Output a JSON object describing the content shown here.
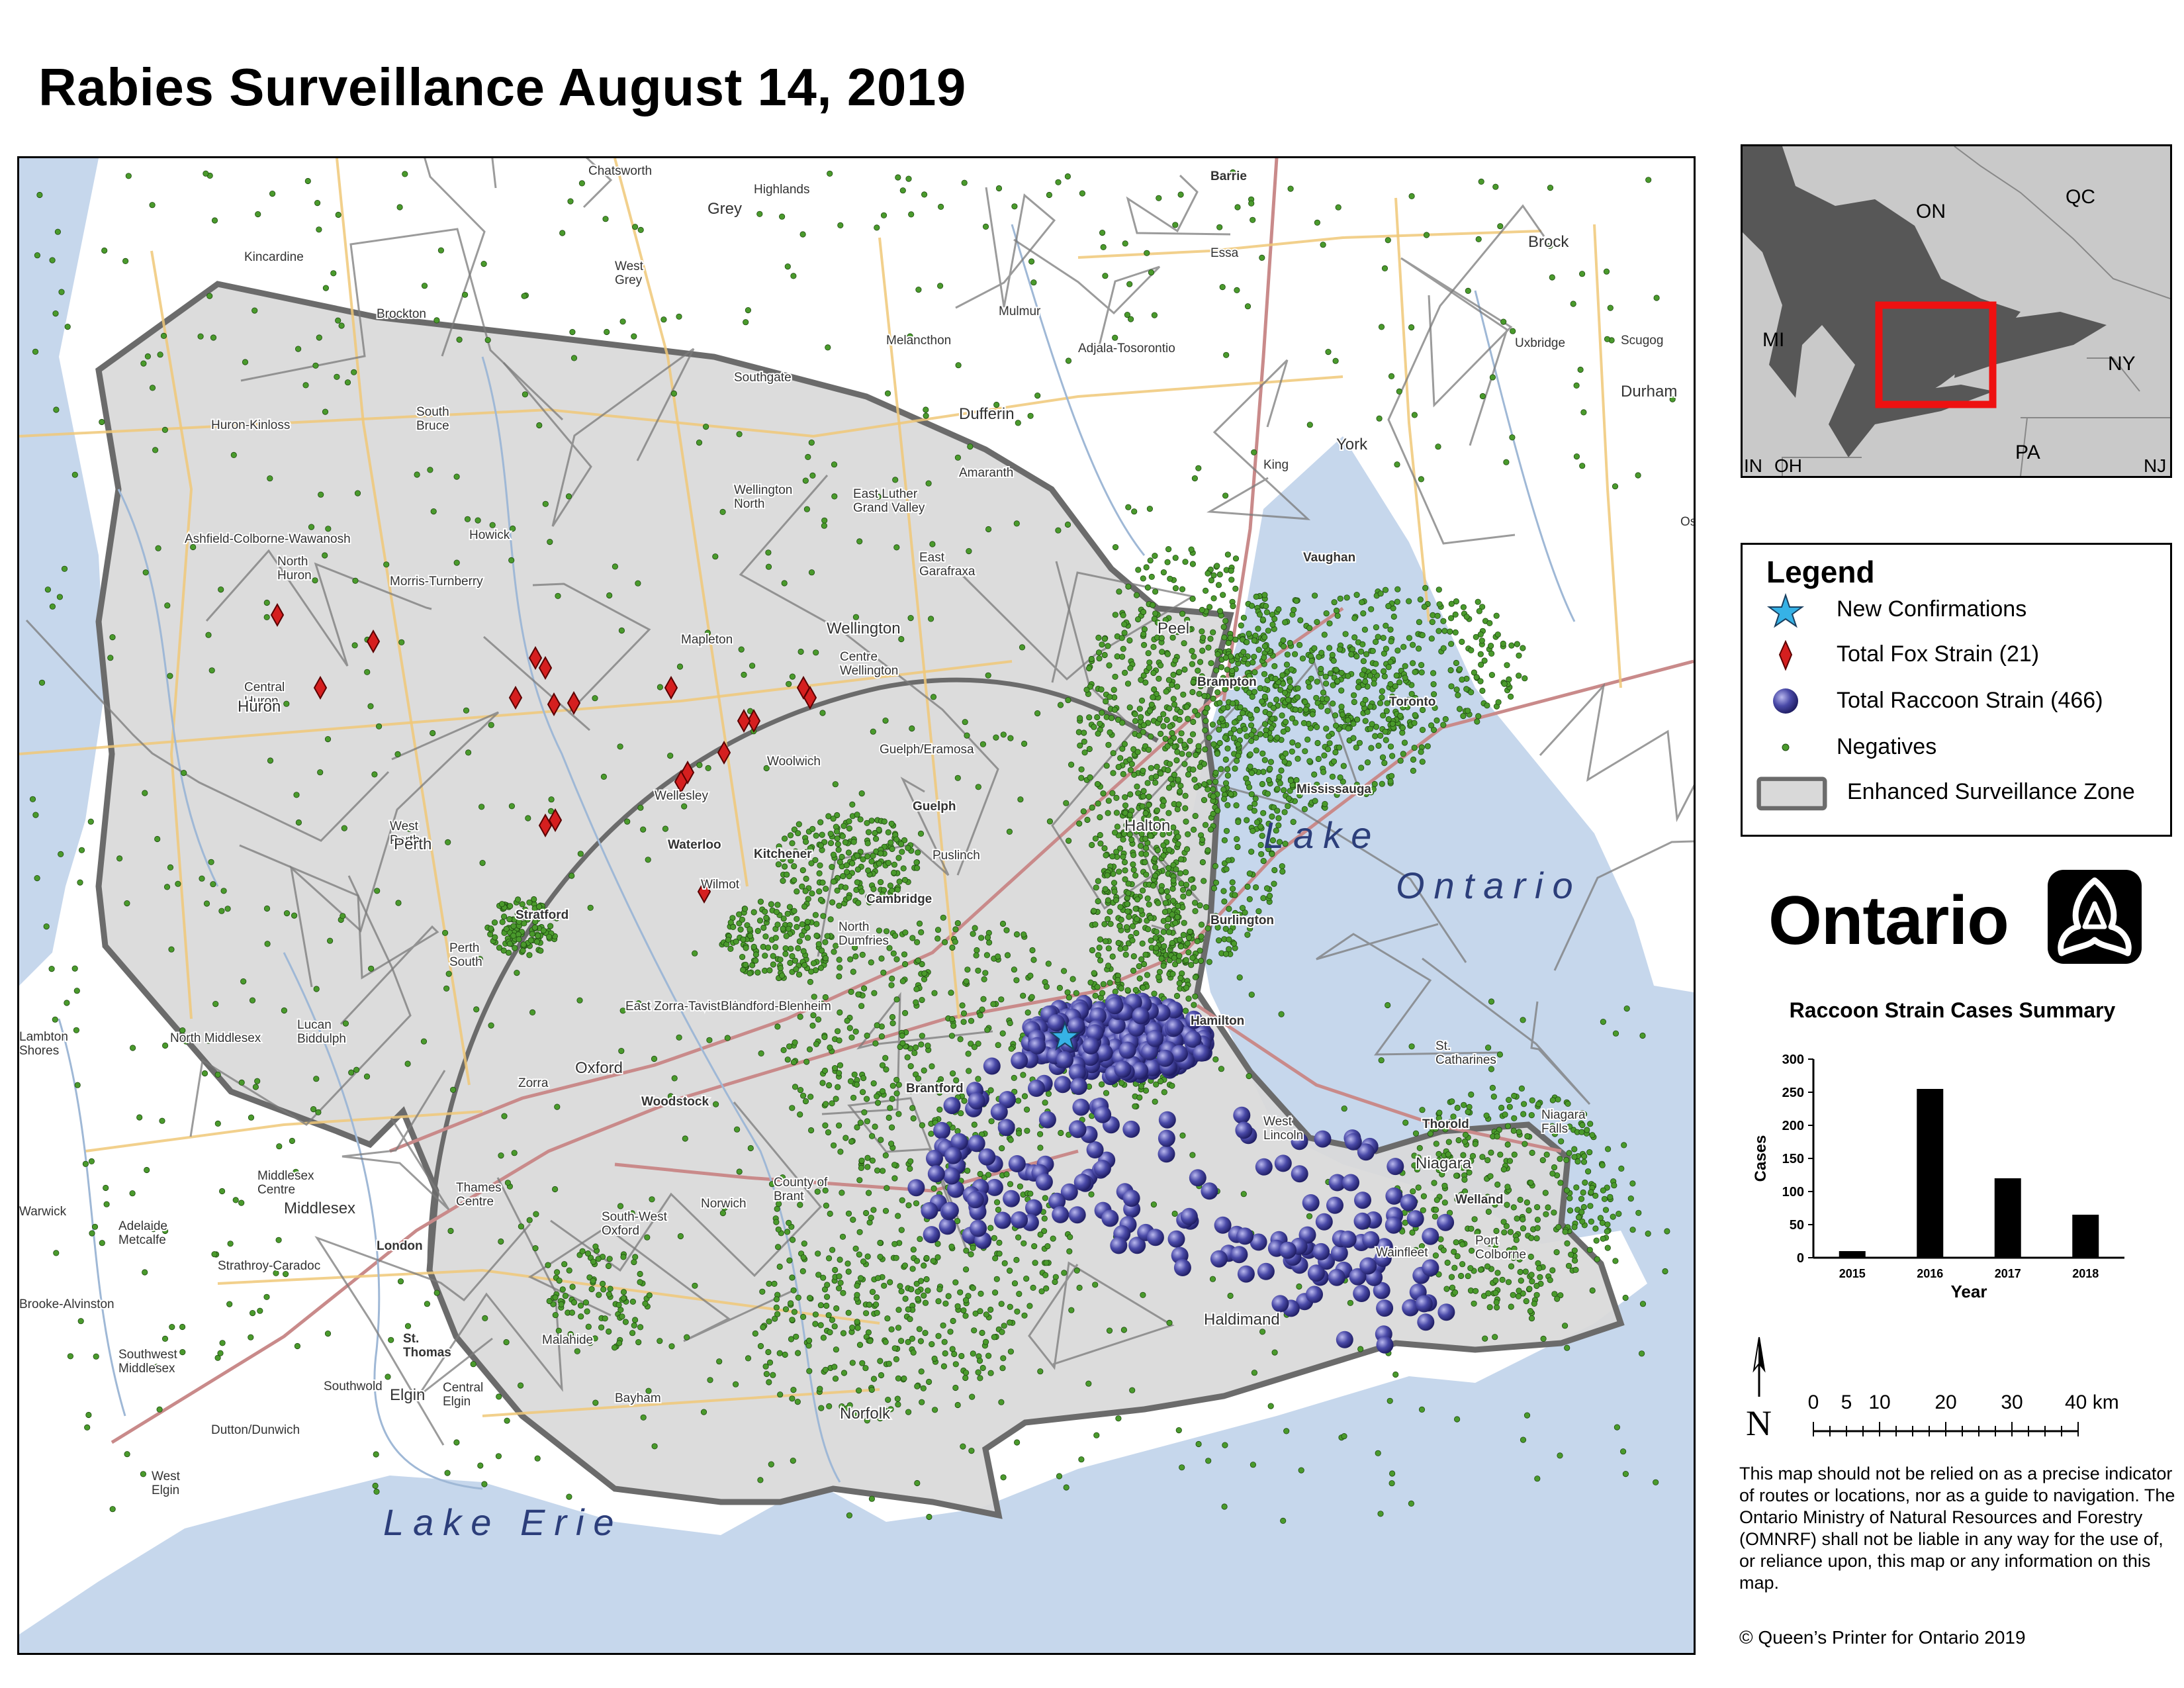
{
  "title": "Rabies Surveillance August 14, 2019",
  "map": {
    "colors": {
      "water": "#c6d7ec",
      "land": "#ffffff",
      "zone_fill": "#d9d9d9",
      "zone_border": "#6b6b6b",
      "boundary": "#7a7a7a",
      "road_major": "#c98a8a",
      "road_secondary": "#f0c878",
      "river": "#9fb8d6",
      "negatives": "#4a9a2c",
      "fox": "#d51f1f",
      "raccoon": "#3b3a8f",
      "new_confirmation": "#36b2e6"
    },
    "water_labels": {
      "lake_ontario_line1": "Lake",
      "lake_ontario_line2": "Ontario",
      "lake_erie": "Lake Erie"
    },
    "place_labels": [
      "Chatsworth",
      "Grey",
      "Highlands",
      "Barrie",
      "Kincardine",
      "West Grey",
      "Essa",
      "Brock",
      "Brockton",
      "Mulmur",
      "Melancthon",
      "Adjala-Tosorontio",
      "Uxbridge",
      "Scugog",
      "Southgate",
      "Durham",
      "Huron-Kinloss",
      "South Bruce",
      "Dufferin",
      "King",
      "York",
      "Amaranth",
      "Wellington North",
      "East Luther Grand Valley",
      "Osha",
      "Ashfield-Colborne-Wawanosh",
      "Howick",
      "Vaughan",
      "North Huron",
      "Morris-Turnberry",
      "East Garafraxa",
      "Peel",
      "Wellington",
      "Mapleton",
      "Centre Wellington",
      "Brampton",
      "Toronto",
      "Central Huron",
      "Huron",
      "Guelph/Eramosa",
      "Woolwich",
      "Mississauga",
      "Wellesley",
      "Guelph",
      "Halton",
      "Puslinch",
      "West Perth",
      "Perth",
      "Waterloo",
      "Kitchener",
      "Wilmot",
      "Cambridge",
      "Stratford",
      "North Dumfries",
      "Burlington",
      "Perth South",
      "Hamilton",
      "Lucan Biddulph",
      "East Zorra-Tavistock",
      "Blandford-Blenheim",
      "Lambton Shores",
      "North Middlesex",
      "Oxford",
      "St. Catharines",
      "Zorra",
      "Brantford",
      "Woodstock",
      "Thorold",
      "Niagara Falls",
      "West Lincoln",
      "Middlesex Centre",
      "Thames Centre",
      "County of Brant",
      "Niagara",
      "Middlesex",
      "Warwick",
      "Welland",
      "Norwich",
      "South-West Oxford",
      "London",
      "Adelaide Metcalfe",
      "Wainfleet",
      "Port Colborne",
      "Strathroy-Caradoc",
      "Brooke-Alvinston",
      "Haldimand",
      "St. Thomas",
      "Malahide",
      "Southwest Middlesex",
      "Southwold",
      "Elgin",
      "Central Elgin",
      "Bayham",
      "Norfolk",
      "Dutton/Dunwich",
      "West Elgin"
    ]
  },
  "inset": {
    "labels": {
      "on": "ON",
      "qc": "QC",
      "mi": "MI",
      "ny": "NY",
      "pa": "PA",
      "in": "IN",
      "oh": "OH",
      "nj": "NJ"
    },
    "colors": {
      "land": "#c9c9c9",
      "lakes": "#575757",
      "frame": "#ee1111",
      "borders": "#888888"
    }
  },
  "legend": {
    "title": "Legend",
    "items": [
      {
        "label": "New Confirmations",
        "icon": "star-icon"
      },
      {
        "label": "Total Fox Strain (21)",
        "icon": "diamond-icon"
      },
      {
        "label": "Total Raccoon Strain (466)",
        "icon": "sphere-icon"
      },
      {
        "label": "Negatives",
        "icon": "dot-icon"
      },
      {
        "label": "Enhanced Surveillance Zone",
        "icon": "zone-swatch-icon"
      }
    ]
  },
  "logo": {
    "wordmark": "Ontario",
    "icon": "trillium-icon"
  },
  "chart_data": {
    "type": "bar",
    "title": "Raccoon Strain Cases Summary",
    "categories": [
      "2015",
      "2016",
      "2017",
      "2018"
    ],
    "values": [
      10,
      255,
      120,
      65
    ],
    "xlabel": "Year",
    "ylabel": "Cases",
    "ylim": [
      0,
      300
    ],
    "yticks": [
      0,
      50,
      100,
      150,
      200,
      250,
      300
    ],
    "grid": false,
    "bar_color": "#000000"
  },
  "scale": {
    "north": "N",
    "ticks": [
      "0",
      "5",
      "10",
      "20",
      "30",
      "40 km"
    ],
    "tick_values_km": [
      0,
      5,
      10,
      20,
      30,
      40
    ]
  },
  "disclaimer": "This map should not be relied on as a precise indicator of routes or locations, nor as a guide to navigation. The Ontario Ministry of Natural Resources and Forestry (OMNRF) shall not be liable in any way for the use of, or reliance upon, this map or any information on this map.",
  "copyright": "© Queen’s Printer for Ontario 2019"
}
